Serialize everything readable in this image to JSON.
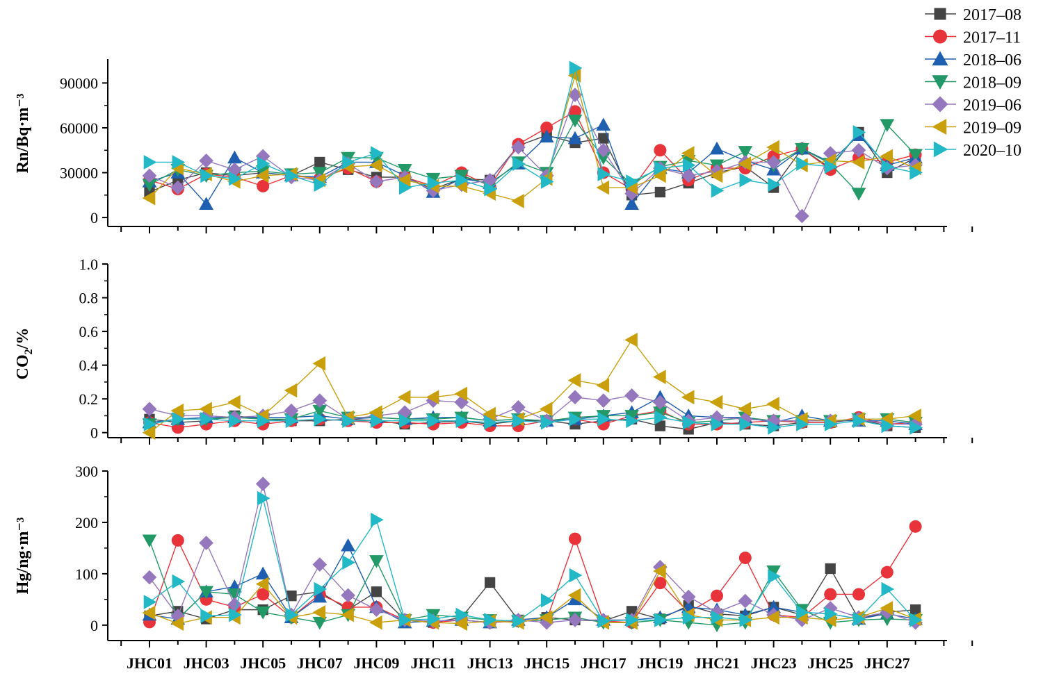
{
  "chart_data": {
    "type": "line",
    "categories": [
      "JHC01",
      "JHC02",
      "JHC03",
      "JHC04",
      "JHC05",
      "JHC06",
      "JHC07",
      "JHC08",
      "JHC09",
      "JHC10",
      "JHC11",
      "JHC12",
      "JHC13",
      "JHC14",
      "JHC15",
      "JHC16",
      "JHC17",
      "JHC18",
      "JHC19",
      "JHC20",
      "JHC21",
      "JHC22",
      "JHC23",
      "JHC24",
      "JHC25",
      "JHC26",
      "JHC27",
      "JHC28"
    ],
    "x_tick_labels": [
      "JHC01",
      "JHC03",
      "JHC05",
      "JHC07",
      "JHC09",
      "JHC11",
      "JHC13",
      "JHC15",
      "JHC17",
      "JHC19",
      "JHC21",
      "JHC23",
      "JHC25",
      "JHC27"
    ],
    "legend": {
      "position": "top-right",
      "series": [
        {
          "name": "2017–08",
          "color": "#444444",
          "marker": "square"
        },
        {
          "name": "2017–11",
          "color": "#e8333a",
          "marker": "circle"
        },
        {
          "name": "2018–06",
          "color": "#1f5fb0",
          "marker": "triangle-up"
        },
        {
          "name": "2018–09",
          "color": "#229966",
          "marker": "triangle-down"
        },
        {
          "name": "2019–06",
          "color": "#9577bd",
          "marker": "diamond"
        },
        {
          "name": "2019–09",
          "color": "#c9a00c",
          "marker": "triangle-left"
        },
        {
          "name": "2020–10",
          "color": "#22b8c6",
          "marker": "triangle-right"
        }
      ]
    },
    "panels": [
      {
        "ylabel": "Rn/Bq·m⁻³",
        "ylim": [
          -6000,
          106000
        ],
        "yticks": [
          0,
          30000,
          60000,
          90000
        ],
        "ytick_labels": [
          "0",
          "30000",
          "60000",
          "90000"
        ],
        "series": [
          [
            17000,
            25000,
            30000,
            28000,
            30000,
            28000,
            37000,
            32000,
            27000,
            27000,
            19000,
            26000,
            25000,
            48000,
            55000,
            50000,
            53000,
            15000,
            17000,
            23000,
            30000,
            34000,
            20000,
            46000,
            33000,
            57000,
            30000,
            40000
          ],
          [
            25000,
            19000,
            29000,
            27000,
            21000,
            28000,
            26000,
            33000,
            24000,
            27000,
            21000,
            30000,
            21000,
            49000,
            60000,
            71000,
            30000,
            19000,
            45000,
            25000,
            33000,
            33000,
            41000,
            46000,
            32000,
            40000,
            37000,
            42000
          ],
          [
            24000,
            30000,
            9000,
            40000,
            30000,
            28000,
            27000,
            37000,
            37000,
            28000,
            17000,
            26000,
            23000,
            36000,
            54000,
            53000,
            62000,
            9000,
            33000,
            30000,
            46000,
            38000,
            32000,
            46000,
            37000,
            55000,
            35000,
            40000
          ],
          [
            22000,
            32000,
            28000,
            30000,
            31000,
            29000,
            30000,
            40000,
            40000,
            32000,
            26000,
            28000,
            22000,
            37000,
            30000,
            65000,
            40000,
            22000,
            34000,
            38000,
            35000,
            44000,
            35000,
            46000,
            36000,
            16000,
            62000,
            42000
          ],
          [
            28000,
            20000,
            38000,
            32000,
            41000,
            27000,
            25000,
            36000,
            24000,
            27000,
            18000,
            22000,
            25000,
            47000,
            28000,
            82000,
            45000,
            16000,
            33000,
            28000,
            31000,
            37000,
            37000,
            1000,
            43000,
            45000,
            33000,
            35000
          ],
          [
            13000,
            33000,
            29000,
            24000,
            28000,
            29000,
            25000,
            34000,
            35000,
            25000,
            21000,
            21000,
            16000,
            11000,
            26000,
            95000,
            20000,
            20000,
            28000,
            43000,
            28000,
            36000,
            47000,
            35000,
            38000,
            37000,
            41000,
            33000
          ],
          [
            37000,
            37000,
            28000,
            26000,
            36000,
            28000,
            22000,
            37000,
            43000,
            20000,
            23000,
            25000,
            19000,
            36000,
            24000,
            100000,
            29000,
            24000,
            33000,
            35000,
            18000,
            25000,
            22000,
            36000,
            34000,
            57000,
            34000,
            30000
          ]
        ]
      },
      {
        "ylabel": "CO2/%",
        "ylim": [
          -0.03,
          1.0
        ],
        "yticks": [
          0,
          0.2,
          0.4,
          0.6,
          0.8,
          1.0
        ],
        "ytick_labels": [
          "0",
          "0.2",
          "0.4",
          "0.6",
          "0.8",
          "1.0"
        ],
        "series": [
          [
            0.08,
            0.06,
            0.07,
            0.1,
            0.08,
            0.07,
            0.07,
            0.08,
            0.07,
            0.05,
            0.06,
            0.07,
            0.05,
            0.07,
            0.07,
            0.05,
            0.07,
            0.08,
            0.04,
            0.02,
            0.06,
            0.05,
            0.04,
            0.06,
            0.06,
            0.08,
            0.04,
            0.03
          ],
          [
            0.06,
            0.03,
            0.05,
            0.07,
            0.05,
            0.07,
            0.08,
            0.07,
            0.06,
            0.06,
            0.05,
            0.06,
            0.04,
            0.04,
            0.07,
            0.08,
            0.05,
            0.1,
            0.13,
            0.05,
            0.05,
            0.06,
            0.07,
            0.06,
            0.06,
            0.09,
            0.05,
            0.06
          ],
          [
            0.06,
            0.08,
            0.09,
            0.09,
            0.09,
            0.09,
            0.1,
            0.08,
            0.09,
            0.08,
            0.09,
            0.09,
            0.07,
            0.08,
            0.07,
            0.08,
            0.1,
            0.12,
            0.21,
            0.1,
            0.09,
            0.09,
            0.06,
            0.1,
            0.07,
            0.07,
            0.07,
            0.05
          ],
          [
            0.05,
            0.08,
            0.08,
            0.09,
            0.08,
            0.08,
            0.13,
            0.09,
            0.09,
            0.08,
            0.08,
            0.09,
            0.07,
            0.08,
            0.07,
            0.09,
            0.1,
            0.1,
            0.12,
            0.06,
            0.07,
            0.09,
            0.07,
            0.07,
            0.07,
            0.08,
            0.08,
            0.06
          ],
          [
            0.14,
            0.1,
            0.1,
            0.09,
            0.1,
            0.13,
            0.19,
            0.08,
            0.1,
            0.12,
            0.19,
            0.18,
            0.08,
            0.15,
            0.07,
            0.21,
            0.19,
            0.22,
            0.18,
            0.07,
            0.09,
            0.08,
            0.07,
            0.07,
            0.07,
            0.08,
            0.05,
            0.05
          ],
          [
            0.0,
            0.13,
            0.14,
            0.18,
            0.1,
            0.25,
            0.41,
            0.09,
            0.12,
            0.21,
            0.21,
            0.23,
            0.11,
            0.08,
            0.14,
            0.31,
            0.28,
            0.55,
            0.33,
            0.21,
            0.18,
            0.14,
            0.17,
            0.08,
            0.07,
            0.08,
            0.08,
            0.1
          ],
          [
            0.05,
            0.08,
            0.08,
            0.07,
            0.07,
            0.07,
            0.08,
            0.07,
            0.07,
            0.07,
            0.07,
            0.07,
            0.06,
            0.07,
            0.06,
            0.08,
            0.08,
            0.07,
            0.09,
            0.06,
            0.05,
            0.05,
            0.03,
            0.05,
            0.05,
            0.07,
            0.04,
            0.03
          ]
        ]
      },
      {
        "ylabel": "Hg/ng·m⁻³",
        "ylim": [
          -30,
          300
        ],
        "yticks": [
          0,
          100,
          200,
          300
        ],
        "ytick_labels": [
          "0",
          "100",
          "200",
          "300"
        ],
        "series": [
          [
            18,
            27,
            12,
            30,
            30,
            57,
            65,
            30,
            65,
            10,
            5,
            15,
            83,
            10,
            15,
            10,
            8,
            27,
            12,
            38,
            22,
            18,
            35,
            20,
            110,
            12,
            25,
            30
          ],
          [
            6,
            165,
            50,
            35,
            60,
            15,
            60,
            35,
            35,
            10,
            5,
            10,
            5,
            8,
            10,
            168,
            8,
            5,
            82,
            25,
            57,
            131,
            20,
            15,
            60,
            60,
            103,
            192
          ],
          [
            20,
            12,
            65,
            75,
            100,
            15,
            55,
            155,
            35,
            5,
            8,
            10,
            5,
            10,
            15,
            50,
            10,
            10,
            15,
            35,
            30,
            20,
            35,
            25,
            22,
            12,
            22,
            12
          ],
          [
            165,
            12,
            65,
            60,
            25,
            15,
            5,
            20,
            125,
            10,
            20,
            15,
            10,
            8,
            10,
            15,
            5,
            5,
            10,
            5,
            0,
            5,
            105,
            30,
            5,
            10,
            12,
            10
          ],
          [
            93,
            18,
            160,
            40,
            275,
            20,
            118,
            58,
            30,
            10,
            8,
            10,
            5,
            10,
            5,
            10,
            10,
            10,
            113,
            55,
            25,
            47,
            20,
            10,
            33,
            15,
            25,
            5
          ],
          [
            24,
            3,
            15,
            15,
            80,
            15,
            25,
            20,
            5,
            10,
            5,
            3,
            8,
            5,
            15,
            58,
            5,
            5,
            105,
            20,
            10,
            10,
            15,
            15,
            10,
            15,
            33,
            12
          ],
          [
            45,
            85,
            18,
            20,
            247,
            20,
            70,
            122,
            205,
            10,
            12,
            20,
            10,
            8,
            48,
            97,
            8,
            10,
            10,
            15,
            15,
            10,
            95,
            25,
            22,
            12,
            70,
            10
          ]
        ]
      }
    ]
  }
}
